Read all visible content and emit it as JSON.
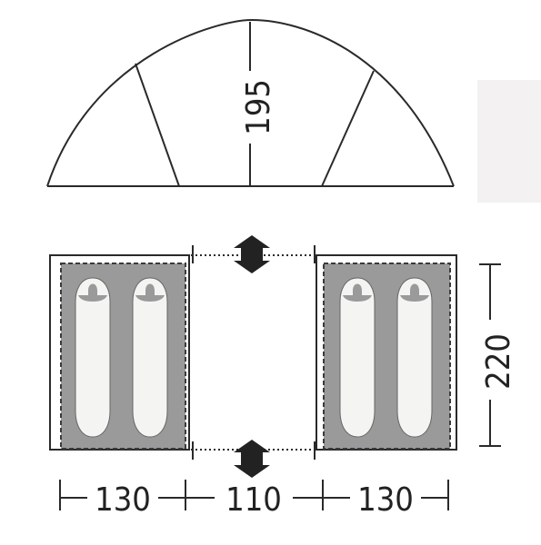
{
  "diagram": {
    "height_label": "195",
    "depth_label": "220",
    "widths": [
      "130",
      "110",
      "130"
    ]
  },
  "colors": {
    "line": "#2a2a2a",
    "floor": "#9a9a9a",
    "floor_border": "#3a3a3a",
    "bag": "#f4f4f2",
    "panel": "#f3f1f1"
  }
}
